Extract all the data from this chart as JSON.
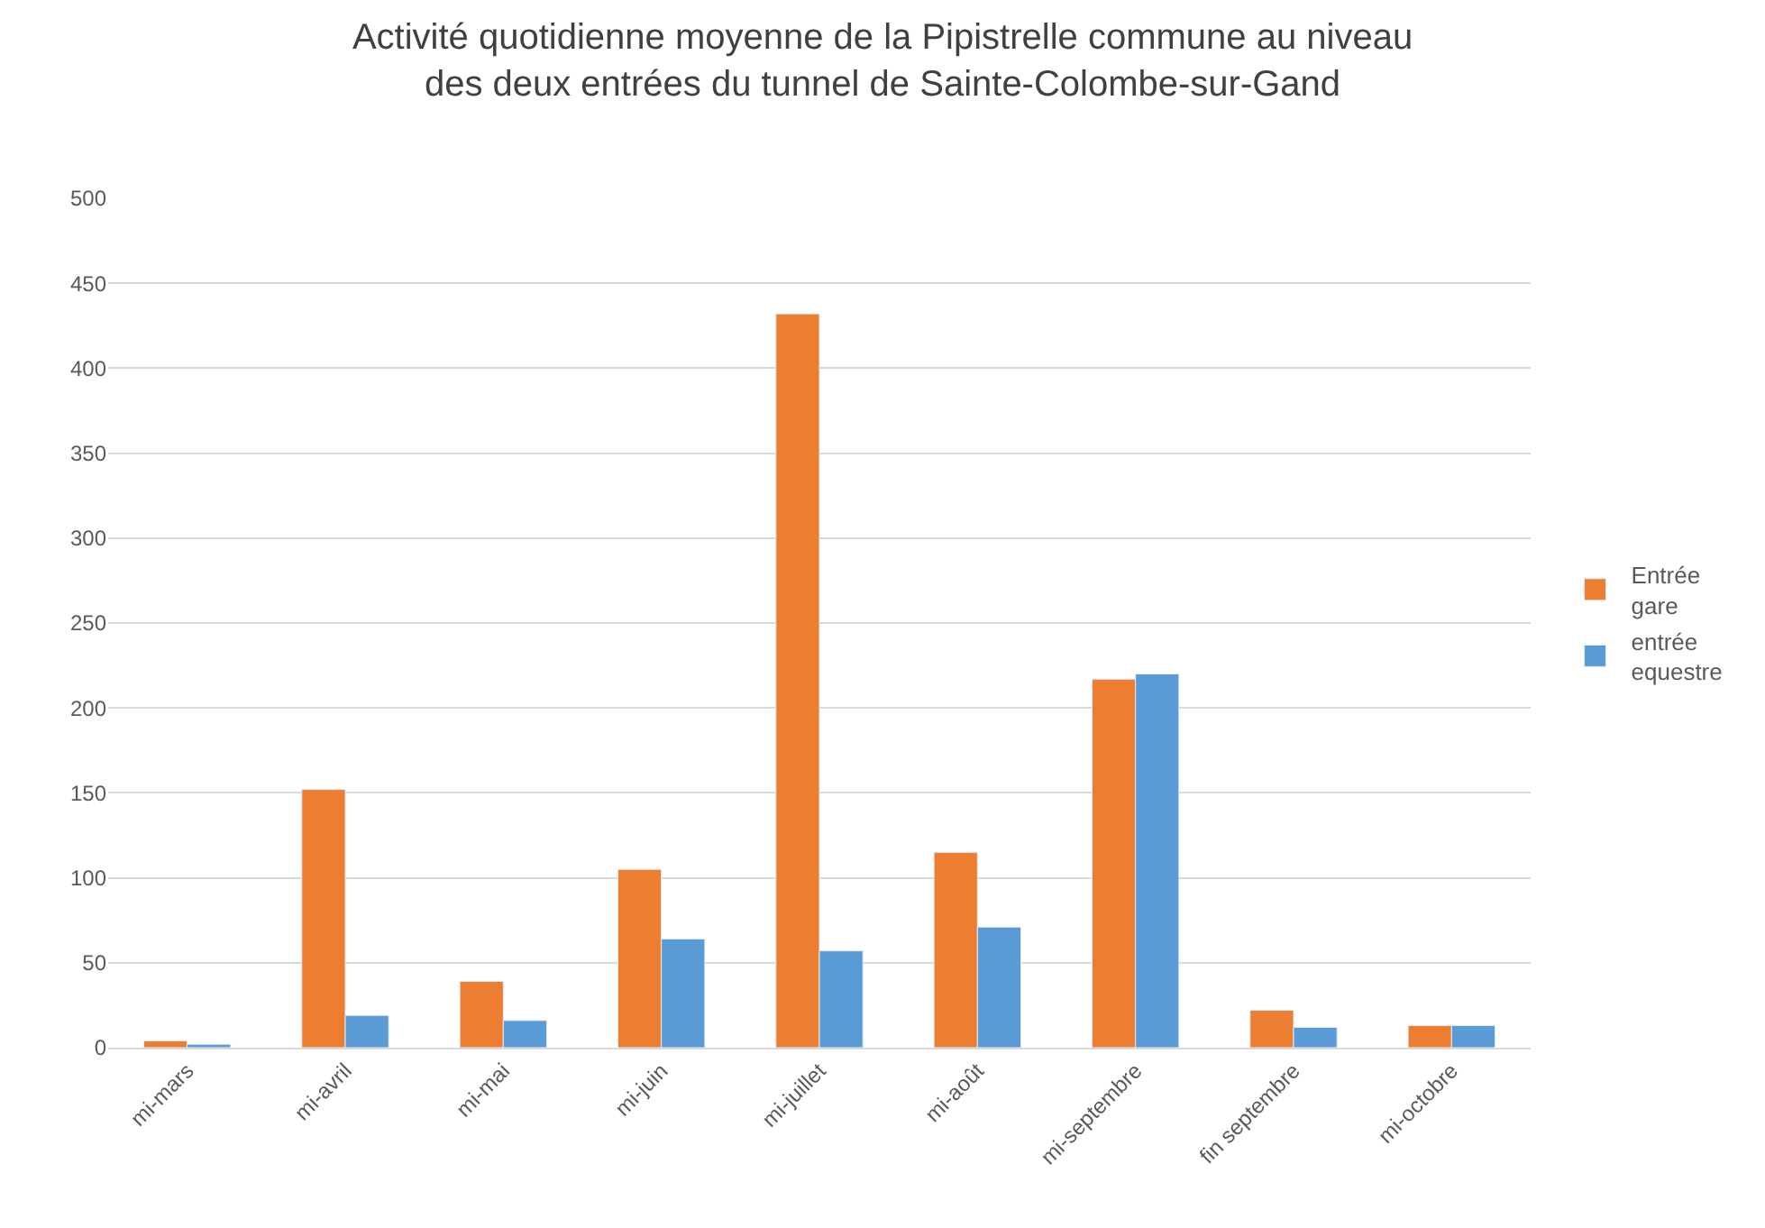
{
  "chart_data": {
    "type": "bar",
    "title": "Activité quotidienne moyenne de la Pipistrelle commune au niveau des deux entrées du tunnel de Sainte-Colombe-sur-Gand",
    "categories": [
      "mi-mars",
      "mi-avril",
      "mi-mai",
      "mi-juin",
      "mi-juillet",
      "mi-août",
      "mi-septembre",
      "fin septembre",
      "mi-octobre"
    ],
    "series": [
      {
        "name": "Entrée gare",
        "color": "#ed7d31",
        "values": [
          4,
          152,
          39,
          105,
          432,
          115,
          217,
          22,
          13
        ]
      },
      {
        "name": "entrée equestre",
        "color": "#5b9bd5",
        "values": [
          2,
          19,
          16,
          64,
          57,
          71,
          220,
          12,
          13
        ]
      }
    ],
    "ylim": [
      0,
      500
    ],
    "yticks": [
      0,
      50,
      100,
      150,
      200,
      250,
      300,
      350,
      400,
      450,
      500
    ],
    "grid": "y",
    "legend": "right"
  }
}
